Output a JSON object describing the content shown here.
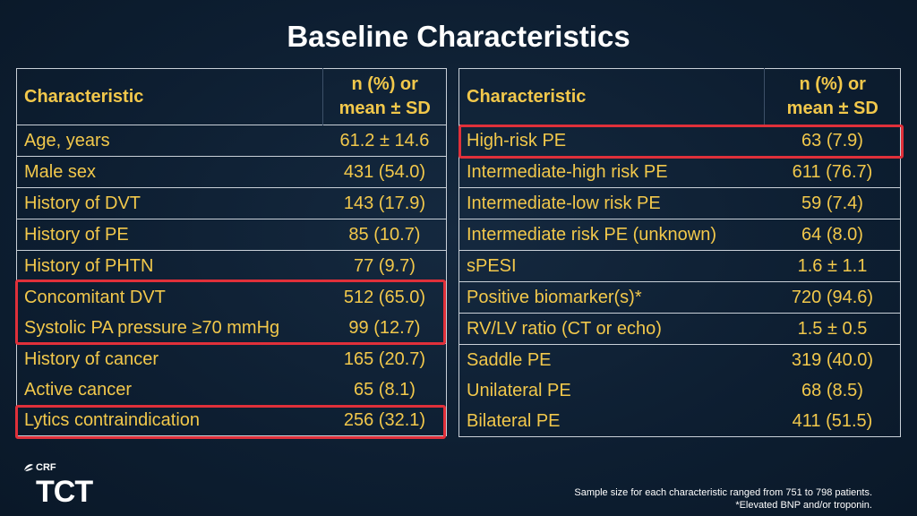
{
  "title": "Baseline Characteristics",
  "colors": {
    "accent": "#f2c84b",
    "highlight": "#e0303a",
    "background": "#0d1e31"
  },
  "left_table": {
    "header": {
      "characteristic": "Characteristic",
      "value_line1": "n (%) or",
      "value_line2": "mean ± SD"
    },
    "rows": [
      {
        "label": "Age, years",
        "value": "61.2 ± 14.6"
      },
      {
        "label": "Male sex",
        "value": "431 (54.0)"
      },
      {
        "label": "History of DVT",
        "value": "143 (17.9)"
      },
      {
        "label": "History of PE",
        "value": "85 (10.7)"
      },
      {
        "label": "History of PHTN",
        "value": "77 (9.7)"
      },
      {
        "label": "Concomitant DVT",
        "value": "512 (65.0)"
      },
      {
        "label": "Systolic PA pressure ≥70 mmHg",
        "value": "99 (12.7)"
      },
      {
        "label": "History of cancer",
        "value": "165 (20.7)"
      },
      {
        "label": "Active cancer",
        "value": "65 (8.1)"
      },
      {
        "label": "Lytics contraindication",
        "value": "256 (32.1)"
      }
    ]
  },
  "right_table": {
    "header": {
      "characteristic": "Characteristic",
      "value_line1": "n (%) or",
      "value_line2": "mean ± SD"
    },
    "rows": [
      {
        "label": "High-risk PE",
        "value": "63 (7.9)"
      },
      {
        "label": "Intermediate-high risk PE",
        "value": "611 (76.7)"
      },
      {
        "label": "Intermediate-low risk PE",
        "value": "59 (7.4)"
      },
      {
        "label": "Intermediate risk PE (unknown)",
        "value": "64 (8.0)"
      },
      {
        "label": "sPESI",
        "value": "1.6 ± 1.1"
      },
      {
        "label": "Positive biomarker(s)*",
        "value": "720 (94.6)"
      },
      {
        "label": "RV/LV ratio (CT or echo)",
        "value": "1.5 ± 0.5"
      },
      {
        "label": "Saddle PE",
        "value": "319 (40.0)"
      },
      {
        "label": "Unilateral PE",
        "value": "68 (8.5)"
      },
      {
        "label": "Bilateral PE",
        "value": "411 (51.5)"
      }
    ]
  },
  "logo": {
    "crf": "CRF",
    "tct": "TCT"
  },
  "footnote": {
    "line1": "Sample size for each characteristic ranged from 751 to 798 patients.",
    "line2": "*Elevated BNP and/or troponin."
  }
}
